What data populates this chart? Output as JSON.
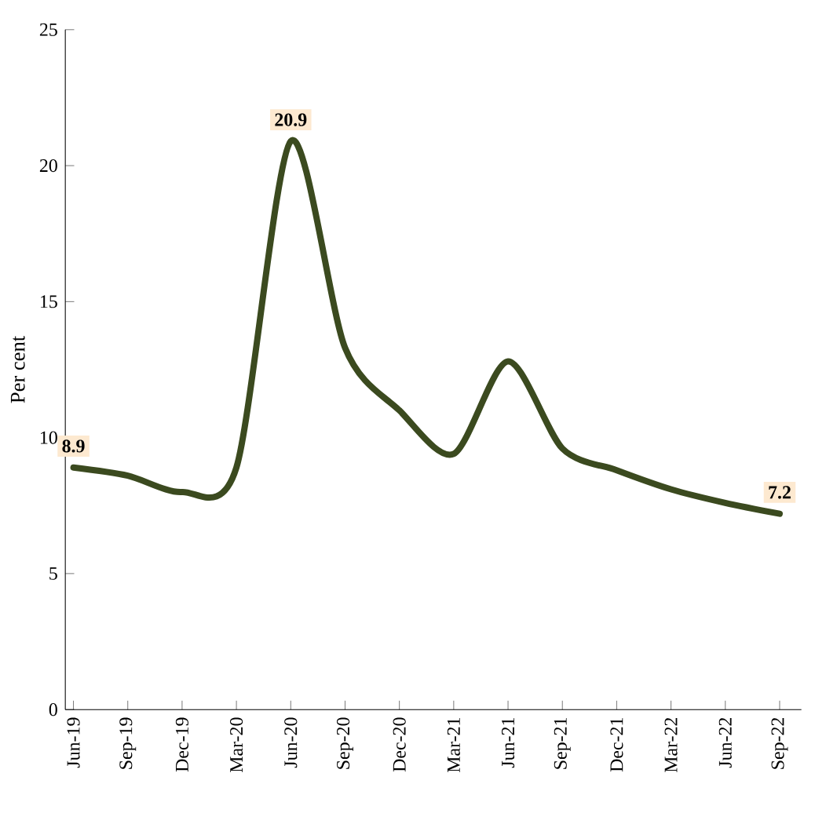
{
  "chart_data": {
    "type": "line",
    "ylabel": "Per cent",
    "categories": [
      "Jun-19",
      "Sep-19",
      "Dec-19",
      "Mar-20",
      "Jun-20",
      "Sep-20",
      "Dec-20",
      "Mar-21",
      "Jun-21",
      "Sep-21",
      "Dec-21",
      "Mar-22",
      "Jun-22",
      "Sep-22"
    ],
    "values": [
      8.9,
      8.6,
      8.0,
      8.9,
      20.9,
      13.3,
      11.0,
      9.4,
      12.8,
      9.6,
      8.8,
      8.1,
      7.6,
      7.2
    ],
    "value_labels": [
      "8.9",
      null,
      null,
      null,
      "20.9",
      null,
      null,
      null,
      null,
      null,
      null,
      null,
      null,
      "7.2"
    ],
    "color": "#3b4a1f",
    "ylim": [
      0,
      25
    ],
    "yticks": [
      0,
      5,
      10,
      15,
      20,
      25
    ]
  }
}
